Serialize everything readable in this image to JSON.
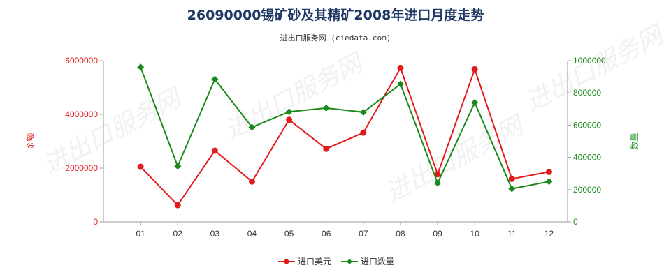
{
  "chart_data": {
    "type": "line",
    "title": "26090000锡矿砂及其精矿2008年进口月度走势",
    "subtitle": "进出口服务网 (ciedata.com)",
    "categories": [
      "01",
      "02",
      "03",
      "04",
      "05",
      "06",
      "07",
      "08",
      "09",
      "10",
      "11",
      "12"
    ],
    "y_left": {
      "label": "金额",
      "range": [
        0,
        6000000
      ],
      "ticks": [
        "0",
        "2000000",
        "4000000",
        "6000000"
      ],
      "color": "#e31a1c"
    },
    "y_right": {
      "label": "数量",
      "range": [
        0,
        1000000
      ],
      "ticks": [
        "0",
        "200000",
        "400000",
        "600000",
        "800000",
        "1000000"
      ],
      "color": "#1a8a1a"
    },
    "series": [
      {
        "name": "进口美元",
        "axis": "left",
        "color": "#e31a1c",
        "marker": "circle",
        "values": [
          2050000,
          620000,
          2650000,
          1500000,
          3800000,
          2720000,
          3320000,
          5730000,
          1770000,
          5680000,
          1600000,
          1860000
        ]
      },
      {
        "name": "进口数量",
        "axis": "right",
        "color": "#1a8a1a",
        "marker": "diamond",
        "values": [
          960000,
          345000,
          885000,
          587000,
          683000,
          706000,
          680000,
          855000,
          240000,
          740000,
          205000,
          250000
        ]
      }
    ],
    "grid": false,
    "legend": "bottom-center",
    "watermark": "进出口服务网"
  }
}
